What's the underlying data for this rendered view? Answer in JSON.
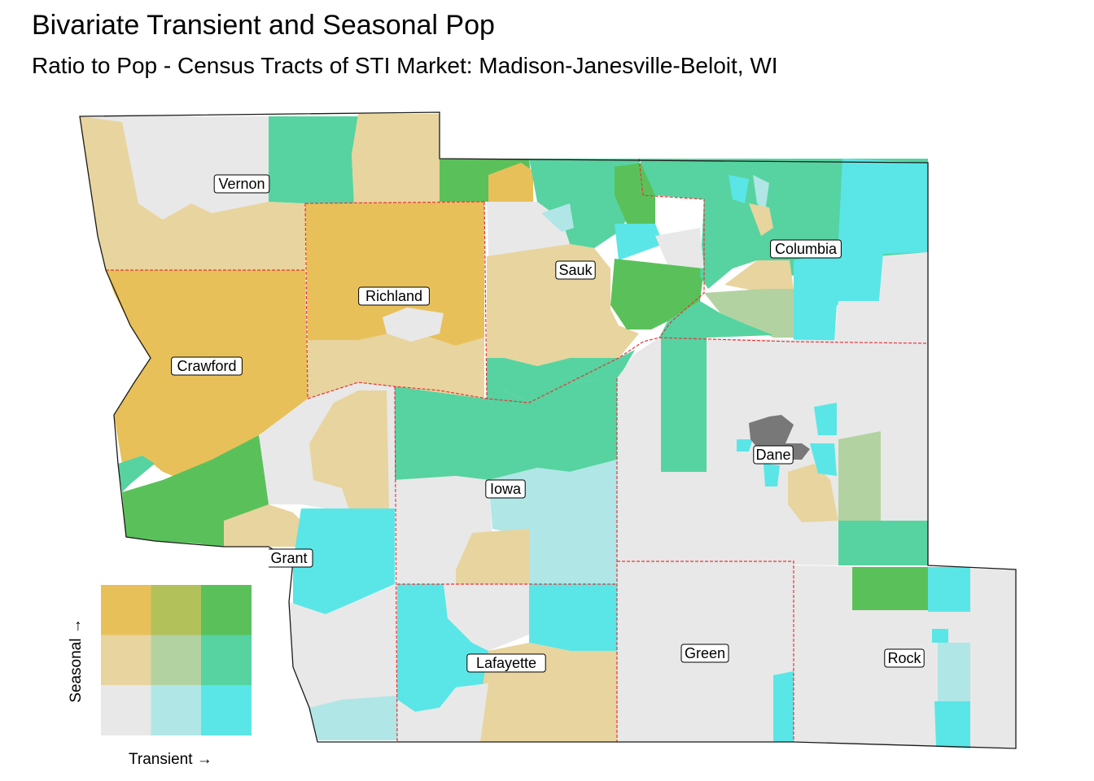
{
  "title": "Bivariate Transient and Seasonal Pop",
  "subtitle": "Ratio to Pop - Census Tracts of STI Market: Madison-Janesville-Beloit, WI",
  "palette": {
    "low_low": "#e8e8e8",
    "transient_mid_seasonal_low": "#b0e6e6",
    "transient_high_seasonal_low": "#5ae6e6",
    "transient_low_seasonal_mid": "#e8d49e",
    "transient_mid_seasonal_mid": "#b2d3a1",
    "transient_high_seasonal_mid": "#56d3a0",
    "transient_low_seasonal_high": "#e8c05a",
    "transient_mid_seasonal_high": "#b3c15b",
    "transient_high_seasonal_high": "#5ac15a",
    "missing": "#787878",
    "county_border": "#e8343a"
  },
  "counties": [
    "Vernon",
    "Columbia",
    "Sauk",
    "Richland",
    "Crawford",
    "Dane",
    "Iowa",
    "Grant",
    "Lafayette",
    "Green",
    "Rock"
  ],
  "legend": {
    "x_label": "Transient →",
    "y_label": "Seasonal →",
    "grid": [
      [
        "#e8c05a",
        "#b3c15b",
        "#5ac15a"
      ],
      [
        "#e8d49e",
        "#b2d3a1",
        "#56d3a0"
      ],
      [
        "#e8e8e8",
        "#b0e6e6",
        "#5ae6e6"
      ]
    ]
  }
}
